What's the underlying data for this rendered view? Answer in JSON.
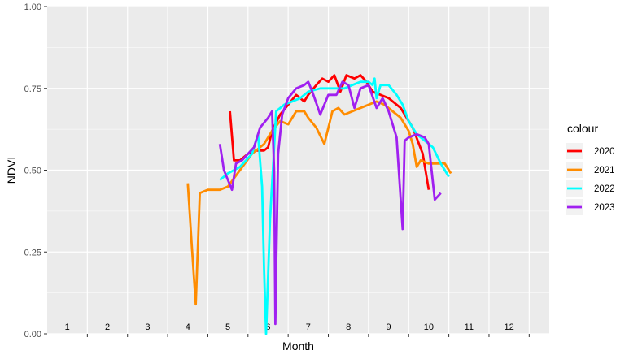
{
  "chart_data": {
    "type": "line",
    "xlabel": "Month",
    "ylabel": "NDVI",
    "ylim": [
      0,
      1
    ],
    "xlim": [
      0.5,
      13.0
    ],
    "y_ticks": [
      "0.00",
      "0.25",
      "0.50",
      "0.75",
      "1.00"
    ],
    "y_tick_values": [
      0,
      0.25,
      0.5,
      0.75,
      1.0
    ],
    "month_labels": [
      "1",
      "2",
      "3",
      "4",
      "5",
      "6",
      "7",
      "8",
      "9",
      "10",
      "11",
      "12"
    ],
    "month_label_positions": [
      1,
      2,
      3,
      4,
      5,
      6,
      7,
      8,
      9,
      10,
      11,
      12
    ],
    "month_boundaries": [
      1.5,
      2.5,
      3.5,
      4.5,
      5.5,
      6.5,
      7.5,
      8.5,
      9.5,
      10.5,
      11.5,
      12.5
    ],
    "grid": true,
    "legend": {
      "title": "colour",
      "position": "right"
    },
    "series": [
      {
        "name": "2020",
        "color": "#ff0000",
        "x": [
          5.05,
          5.15,
          5.3,
          5.5,
          5.7,
          5.9,
          6.0,
          6.1,
          6.3,
          6.5,
          6.7,
          6.9,
          7.0,
          7.2,
          7.35,
          7.5,
          7.65,
          7.8,
          7.95,
          8.15,
          8.3,
          8.45,
          8.6,
          8.8,
          9.0,
          9.3,
          9.6,
          9.85,
          10.0
        ],
        "y": [
          0.68,
          0.53,
          0.53,
          0.55,
          0.56,
          0.56,
          0.57,
          0.62,
          0.67,
          0.7,
          0.73,
          0.71,
          0.73,
          0.76,
          0.78,
          0.77,
          0.79,
          0.74,
          0.79,
          0.78,
          0.79,
          0.77,
          0.74,
          0.73,
          0.72,
          0.69,
          0.63,
          0.55,
          0.44
        ]
      },
      {
        "name": "2021",
        "color": "#ff8c00",
        "x": [
          4.0,
          4.1,
          4.2,
          4.3,
          4.5,
          4.8,
          5.0,
          5.3,
          5.6,
          5.9,
          6.1,
          6.3,
          6.5,
          6.7,
          6.9,
          7.0,
          7.2,
          7.4,
          7.6,
          7.75,
          7.9,
          8.1,
          8.3,
          8.5,
          8.7,
          8.9,
          9.1,
          9.3,
          9.5,
          9.6,
          9.7,
          9.8,
          10.0,
          10.2,
          10.4,
          10.55
        ],
        "y": [
          0.46,
          0.27,
          0.09,
          0.43,
          0.44,
          0.44,
          0.45,
          0.5,
          0.55,
          0.58,
          0.62,
          0.65,
          0.64,
          0.68,
          0.68,
          0.66,
          0.63,
          0.58,
          0.68,
          0.69,
          0.67,
          0.68,
          0.69,
          0.7,
          0.71,
          0.7,
          0.68,
          0.66,
          0.62,
          0.58,
          0.51,
          0.53,
          0.52,
          0.52,
          0.52,
          0.49
        ]
      },
      {
        "name": "2022",
        "color": "#00ffff",
        "x": [
          4.8,
          5.0,
          5.3,
          5.6,
          5.75,
          5.85,
          5.9,
          5.95,
          6.05,
          6.2,
          6.4,
          6.6,
          6.8,
          7.0,
          7.3,
          7.6,
          7.9,
          8.1,
          8.3,
          8.5,
          8.6,
          8.65,
          8.7,
          8.8,
          9.0,
          9.2,
          9.35,
          9.5,
          9.7,
          9.9,
          10.1,
          10.3,
          10.5
        ],
        "y": [
          0.47,
          0.49,
          0.51,
          0.55,
          0.61,
          0.45,
          0.2,
          0.0,
          0.35,
          0.68,
          0.7,
          0.71,
          0.72,
          0.74,
          0.75,
          0.75,
          0.75,
          0.76,
          0.77,
          0.77,
          0.76,
          0.78,
          0.72,
          0.76,
          0.76,
          0.73,
          0.7,
          0.65,
          0.61,
          0.59,
          0.57,
          0.52,
          0.48
        ]
      },
      {
        "name": "2023",
        "color": "#a020f0",
        "x": [
          4.8,
          4.9,
          5.0,
          5.1,
          5.2,
          5.35,
          5.5,
          5.65,
          5.8,
          6.0,
          6.1,
          6.15,
          6.18,
          6.2,
          6.25,
          6.35,
          6.5,
          6.7,
          6.9,
          7.0,
          7.1,
          7.3,
          7.5,
          7.7,
          7.85,
          8.0,
          8.15,
          8.3,
          8.5,
          8.7,
          8.85,
          9.0,
          9.2,
          9.35,
          9.4,
          9.5,
          9.7,
          9.9,
          10.0,
          10.15,
          10.3
        ],
        "y": [
          0.58,
          0.5,
          0.47,
          0.44,
          0.52,
          0.53,
          0.55,
          0.57,
          0.63,
          0.66,
          0.68,
          0.5,
          0.03,
          0.2,
          0.55,
          0.67,
          0.72,
          0.75,
          0.76,
          0.77,
          0.74,
          0.67,
          0.73,
          0.73,
          0.77,
          0.76,
          0.69,
          0.75,
          0.76,
          0.69,
          0.72,
          0.68,
          0.6,
          0.32,
          0.59,
          0.6,
          0.61,
          0.6,
          0.58,
          0.41,
          0.43
        ]
      }
    ]
  }
}
